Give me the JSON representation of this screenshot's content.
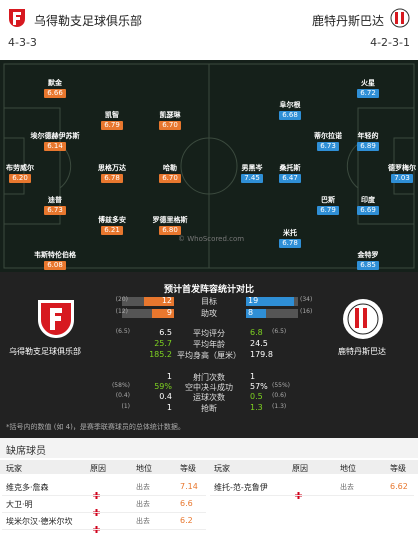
{
  "header": {
    "home": {
      "name": "乌得勒支足球俱乐部",
      "formation": "4-3-3"
    },
    "away": {
      "name": "鹿特丹斯巴达",
      "formation": "4-2-3-1"
    }
  },
  "pitch": {
    "home_players": [
      {
        "name": "布劳威尔",
        "rating": "6.20"
      },
      {
        "name": "默金",
        "rating": "6.66"
      },
      {
        "name": "埃尔德赫伊苏斯",
        "rating": "6.14"
      },
      {
        "name": "迪普",
        "rating": "6.73"
      },
      {
        "name": "韦斯特伦伯格",
        "rating": "6.08"
      },
      {
        "name": "凯智",
        "rating": "6.79"
      },
      {
        "name": "思格万达",
        "rating": "6.78"
      },
      {
        "name": "博兹多安",
        "rating": "6.21"
      },
      {
        "name": "凯瑟琳",
        "rating": "6.70"
      },
      {
        "name": "哈勒",
        "rating": "6.70"
      },
      {
        "name": "罗德里格斯",
        "rating": "6.80"
      }
    ],
    "away_players": [
      {
        "name": "德罗梅尔",
        "rating": "7.03"
      },
      {
        "name": "火星",
        "rating": "6.72"
      },
      {
        "name": "年轻的",
        "rating": "6.89"
      },
      {
        "name": "印度",
        "rating": "6.69"
      },
      {
        "name": "金特罗",
        "rating": "6.85"
      },
      {
        "name": "蒂尔拉诺",
        "rating": "6.73"
      },
      {
        "name": "巴斯",
        "rating": "6.79"
      },
      {
        "name": "阜尔根",
        "rating": "6.68"
      },
      {
        "name": "桑托斯",
        "rating": "6.47"
      },
      {
        "name": "米托",
        "rating": "6.78"
      },
      {
        "name": "男黑岑",
        "rating": "7.45"
      }
    ],
    "watermark": "© WhoScored.com"
  },
  "stats": {
    "title": "预计首发阵容统计对比",
    "home_team": "乌得勒支足球俱乐部",
    "away_team": "鹿特丹斯巴达",
    "bars": [
      {
        "label": "目标",
        "home": 12,
        "home_season": "(20)",
        "away": 19,
        "away_season": "(34)"
      },
      {
        "label": "助攻",
        "home": 9,
        "home_season": "(12)",
        "away": 8,
        "away_season": "(16)"
      }
    ],
    "rows": [
      {
        "label": "平均评分",
        "home": "6.5",
        "home_season": "(6.5)",
        "away": "6.8",
        "away_season": "(6.5)",
        "better": "away"
      },
      {
        "label": "平均年龄",
        "home": "25.7",
        "away": "24.5",
        "better": "home"
      },
      {
        "label": "平均身高（厘米）",
        "home": "185.2",
        "away": "179.8",
        "better": "home"
      },
      {
        "label": "射门次数",
        "home": "1",
        "away": "1",
        "better": "none"
      },
      {
        "label": "空中决斗成功",
        "home": "59%",
        "home_season": "(58%)",
        "away": "57%",
        "away_season": "(55%)",
        "better": "home"
      },
      {
        "label": "运球次数",
        "home": "0.4",
        "home_season": "(0.4)",
        "away": "0.5",
        "away_season": "(0.6)",
        "better": "away"
      },
      {
        "label": "抢断",
        "home": "1",
        "home_season": "(1)",
        "away": "1.3",
        "away_season": "(1.3)",
        "better": "away"
      }
    ],
    "footnote": "*括号内的数值 (如 4)，是赛季联赛球员的总体统计数据。"
  },
  "absences": {
    "title": "缺席球员",
    "columns": [
      "玩家",
      "原因",
      "地位",
      "等级"
    ],
    "home": [
      {
        "player": "维克多·詹森",
        "status": "出去",
        "rating": "7.14"
      },
      {
        "player": "大卫·明",
        "status": "出去",
        "rating": "6.6"
      },
      {
        "player": "埃米尔汉·德米尔坎",
        "status": "出去",
        "rating": "6.2"
      }
    ],
    "away": [
      {
        "player": "维托-范-克鲁伊",
        "status": "出去",
        "rating": "6.62"
      }
    ]
  }
}
